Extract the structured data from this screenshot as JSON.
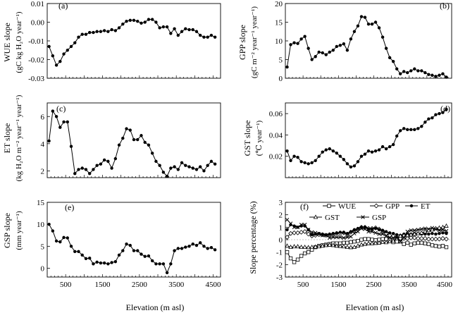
{
  "x_axis_label": "Elevation (m asl)",
  "x_ticks": [
    1500,
    2500,
    3500,
    4500
  ],
  "x_ticks_first_label": "500",
  "x_tick_labels": [
    "500",
    "1500",
    "2500",
    "3500",
    "4500"
  ],
  "panels": [
    {
      "letter": "(a)",
      "ylabel1": "WUE slope",
      "ylabel2": "(gC kg H₂O year⁻¹)"
    },
    {
      "letter": "(b)",
      "ylabel1": "GPP slope",
      "ylabel2": "(gC m⁻² year⁻¹ year⁻¹)"
    },
    {
      "letter": "(c)",
      "ylabel1": "ET slope",
      "ylabel2": "(kg H₂O m⁻² year⁻¹ year⁻¹)"
    },
    {
      "letter": "(d)",
      "ylabel1": "GST slope",
      "ylabel2": "(℃ year⁻¹)"
    },
    {
      "letter": "(e)",
      "ylabel1": "GSP slope",
      "ylabel2": "(mm year⁻¹)"
    },
    {
      "letter": "(f)",
      "ylabel1": "Slope percentage (%)",
      "ylabel2": ""
    }
  ],
  "chart_data": [
    {
      "type": "line",
      "panel": "a",
      "xlim": [
        0,
        4700
      ],
      "ylim": [
        -0.03,
        0.01
      ],
      "yticks": [
        -0.03,
        -0.02,
        -0.01,
        0.0,
        0.01
      ],
      "ytick_labels": [
        "-0.03",
        "-0.02",
        "-0.01",
        "0.00",
        "0.01"
      ],
      "x": [
        50,
        150,
        250,
        350,
        450,
        550,
        650,
        750,
        850,
        950,
        1050,
        1150,
        1250,
        1350,
        1450,
        1550,
        1650,
        1750,
        1850,
        1950,
        2050,
        2150,
        2250,
        2350,
        2450,
        2550,
        2650,
        2750,
        2850,
        2950,
        3050,
        3150,
        3250,
        3350,
        3450,
        3550,
        3650,
        3750,
        3850,
        3950,
        4050,
        4150,
        4250,
        4350,
        4450,
        4550
      ],
      "y": [
        -0.013,
        -0.018,
        -0.023,
        -0.021,
        -0.017,
        -0.015,
        -0.013,
        -0.011,
        -0.008,
        -0.0065,
        -0.0065,
        -0.0055,
        -0.0055,
        -0.005,
        -0.005,
        -0.0045,
        -0.005,
        -0.004,
        -0.0045,
        -0.003,
        -0.001,
        0.0005,
        0.001,
        0.001,
        0.0005,
        -0.0005,
        0.0,
        0.0015,
        0.0015,
        0.0,
        -0.003,
        -0.0025,
        -0.0025,
        -0.006,
        -0.0035,
        -0.007,
        -0.005,
        -0.0035,
        -0.004,
        -0.004,
        -0.005,
        -0.007,
        -0.008,
        -0.008,
        -0.007,
        -0.008
      ]
    },
    {
      "type": "line",
      "panel": "b",
      "xlim": [
        0,
        4700
      ],
      "ylim": [
        0,
        20
      ],
      "yticks": [
        0,
        5,
        10,
        15,
        20
      ],
      "ytick_labels": [
        "0",
        "5",
        "10",
        "15",
        "20"
      ],
      "x": [
        50,
        150,
        250,
        350,
        450,
        550,
        650,
        750,
        850,
        950,
        1050,
        1150,
        1250,
        1350,
        1450,
        1550,
        1650,
        1750,
        1850,
        1950,
        2050,
        2150,
        2250,
        2350,
        2450,
        2550,
        2650,
        2750,
        2850,
        2950,
        3050,
        3150,
        3250,
        3350,
        3450,
        3550,
        3650,
        3750,
        3850,
        3950,
        4050,
        4150,
        4250,
        4350,
        4450,
        4550
      ],
      "y": [
        3.0,
        9.0,
        9.5,
        9.3,
        10.5,
        11.2,
        8.0,
        5.0,
        5.8,
        7.0,
        6.8,
        6.3,
        7.0,
        7.5,
        8.5,
        8.8,
        9.2,
        7.5,
        10.5,
        12.5,
        14.0,
        16.5,
        16.3,
        14.5,
        14.5,
        15.0,
        13.5,
        11.0,
        8.0,
        5.5,
        4.5,
        2.5,
        1.2,
        1.8,
        1.5,
        2.0,
        2.5,
        2.0,
        2.0,
        1.5,
        1.0,
        0.8,
        0.5,
        0.8,
        1.2,
        0.3
      ]
    },
    {
      "type": "line",
      "panel": "c",
      "xlim": [
        0,
        4700
      ],
      "ylim": [
        1.5,
        7
      ],
      "yticks": [
        2,
        4,
        6
      ],
      "ytick_labels": [
        "2",
        "4",
        "6"
      ],
      "x": [
        50,
        150,
        250,
        350,
        450,
        550,
        650,
        750,
        850,
        950,
        1050,
        1150,
        1250,
        1350,
        1450,
        1550,
        1650,
        1750,
        1850,
        1950,
        2050,
        2150,
        2250,
        2350,
        2450,
        2550,
        2650,
        2750,
        2850,
        2950,
        3050,
        3150,
        3250,
        3350,
        3450,
        3550,
        3650,
        3750,
        3850,
        3950,
        4050,
        4150,
        4250,
        4350,
        4450,
        4550
      ],
      "y": [
        4.2,
        6.4,
        6.0,
        5.2,
        5.6,
        5.6,
        3.8,
        1.8,
        2.1,
        2.2,
        2.1,
        1.8,
        2.1,
        2.4,
        2.5,
        2.8,
        2.7,
        2.2,
        2.9,
        3.9,
        4.4,
        5.1,
        5.0,
        4.3,
        4.3,
        4.6,
        4.1,
        3.9,
        3.3,
        2.7,
        2.4,
        1.9,
        1.6,
        2.2,
        2.3,
        2.1,
        2.6,
        2.4,
        2.3,
        2.2,
        2.1,
        2.3,
        2.0,
        2.4,
        2.7,
        2.5
      ]
    },
    {
      "type": "line",
      "panel": "d",
      "xlim": [
        0,
        4700
      ],
      "ylim": [
        0.0,
        0.07
      ],
      "yticks": [
        0.02,
        0.04,
        0.06
      ],
      "ytick_labels": [
        "0.02",
        "0.04",
        "0.06"
      ],
      "x": [
        50,
        150,
        250,
        350,
        450,
        550,
        650,
        750,
        850,
        950,
        1050,
        1150,
        1250,
        1350,
        1450,
        1550,
        1650,
        1750,
        1850,
        1950,
        2050,
        2150,
        2250,
        2350,
        2450,
        2550,
        2650,
        2750,
        2850,
        2950,
        3050,
        3150,
        3250,
        3350,
        3450,
        3550,
        3650,
        3750,
        3850,
        3950,
        4050,
        4150,
        4250,
        4350,
        4450,
        4550
      ],
      "y": [
        0.025,
        0.016,
        0.02,
        0.019,
        0.015,
        0.014,
        0.013,
        0.014,
        0.016,
        0.02,
        0.024,
        0.026,
        0.027,
        0.025,
        0.023,
        0.02,
        0.017,
        0.013,
        0.01,
        0.011,
        0.015,
        0.02,
        0.022,
        0.025,
        0.024,
        0.025,
        0.026,
        0.029,
        0.027,
        0.029,
        0.031,
        0.039,
        0.044,
        0.046,
        0.045,
        0.045,
        0.045,
        0.046,
        0.048,
        0.052,
        0.055,
        0.056,
        0.059,
        0.06,
        0.061,
        0.064
      ]
    },
    {
      "type": "line",
      "panel": "e",
      "xlim": [
        0,
        4700
      ],
      "ylim": [
        -2,
        15
      ],
      "yticks": [
        0,
        5,
        10,
        15
      ],
      "ytick_labels": [
        "0",
        "5",
        "10",
        "15"
      ],
      "x": [
        50,
        150,
        250,
        350,
        450,
        550,
        650,
        750,
        850,
        950,
        1050,
        1150,
        1250,
        1350,
        1450,
        1550,
        1650,
        1750,
        1850,
        1950,
        2050,
        2150,
        2250,
        2350,
        2450,
        2550,
        2650,
        2750,
        2850,
        2950,
        3050,
        3150,
        3250,
        3350,
        3450,
        3550,
        3650,
        3750,
        3850,
        3950,
        4050,
        4150,
        4250,
        4350,
        4450,
        4550
      ],
      "y": [
        10.0,
        8.5,
        6.2,
        6.0,
        7.0,
        6.9,
        5.0,
        3.8,
        3.8,
        3.0,
        2.2,
        2.3,
        1.0,
        1.4,
        1.2,
        1.2,
        1.0,
        1.3,
        1.5,
        3.0,
        4.0,
        5.5,
        5.2,
        4.0,
        4.0,
        3.2,
        2.7,
        2.8,
        1.7,
        1.0,
        1.0,
        1.0,
        -1.0,
        1.0,
        4.0,
        4.5,
        4.5,
        4.8,
        5.0,
        5.5,
        5.2,
        5.8,
        5.0,
        4.5,
        4.7,
        4.2
      ]
    },
    {
      "type": "line",
      "panel": "f",
      "xlim": [
        0,
        4700
      ],
      "ylim": [
        -3,
        3
      ],
      "yticks": [
        -3,
        -2,
        -1,
        0,
        1,
        2,
        3
      ],
      "ytick_labels": [
        "-3",
        "-2",
        "-1",
        "0",
        "1",
        "2",
        "3"
      ],
      "x": [
        50,
        150,
        250,
        350,
        450,
        550,
        650,
        750,
        850,
        950,
        1050,
        1150,
        1250,
        1350,
        1450,
        1550,
        1650,
        1750,
        1850,
        1950,
        2050,
        2150,
        2250,
        2350,
        2450,
        2550,
        2650,
        2750,
        2850,
        2950,
        3050,
        3150,
        3250,
        3350,
        3450,
        3550,
        3650,
        3750,
        3850,
        3950,
        4050,
        4150,
        4250,
        4350,
        4450,
        4550
      ],
      "legend": [
        "WUE",
        "GPP",
        "ET",
        "GST",
        "GSP"
      ],
      "series": [
        {
          "name": "WUE",
          "marker": "square",
          "y": [
            -1.0,
            -1.5,
            -1.8,
            -1.6,
            -1.3,
            -1.1,
            -1.0,
            -0.8,
            -0.6,
            -0.5,
            -0.45,
            -0.4,
            -0.35,
            -0.3,
            -0.3,
            -0.3,
            -0.25,
            -0.25,
            -0.2,
            -0.15,
            -0.1,
            0.0,
            0.05,
            0.05,
            0.0,
            -0.05,
            0.0,
            0.05,
            0.05,
            0.0,
            -0.2,
            -0.15,
            -0.15,
            -0.35,
            -0.25,
            -0.4,
            -0.3,
            -0.25,
            -0.25,
            -0.3,
            -0.35,
            -0.45,
            -0.5,
            -0.55,
            -0.5,
            -0.6
          ]
        },
        {
          "name": "GPP",
          "marker": "diamond",
          "y": [
            0.2,
            0.5,
            0.55,
            0.55,
            0.6,
            0.65,
            0.45,
            0.3,
            0.35,
            0.4,
            0.4,
            0.35,
            0.4,
            0.45,
            0.5,
            0.5,
            0.55,
            0.45,
            0.6,
            0.75,
            0.85,
            1.0,
            1.0,
            0.9,
            0.9,
            0.95,
            0.85,
            0.7,
            0.5,
            0.35,
            0.3,
            0.15,
            0.1,
            0.1,
            0.1,
            0.15,
            0.15,
            0.1,
            0.1,
            0.1,
            0.05,
            0.05,
            0.05,
            0.05,
            0.1,
            0.05
          ]
        },
        {
          "name": "ET",
          "marker": "circle",
          "y": [
            0.8,
            1.2,
            1.1,
            1.0,
            1.1,
            1.1,
            0.8,
            0.4,
            0.45,
            0.5,
            0.45,
            0.4,
            0.45,
            0.5,
            0.55,
            0.6,
            0.6,
            0.5,
            0.65,
            0.8,
            0.9,
            1.0,
            1.0,
            0.85,
            0.85,
            0.9,
            0.8,
            0.75,
            0.65,
            0.55,
            0.5,
            0.4,
            0.35,
            0.45,
            0.45,
            0.45,
            0.5,
            0.5,
            0.45,
            0.45,
            0.45,
            0.5,
            0.45,
            0.5,
            0.55,
            0.5
          ]
        },
        {
          "name": "GST",
          "marker": "triangle",
          "y": [
            -0.5,
            -0.6,
            -0.55,
            -0.55,
            -0.6,
            -0.6,
            -0.62,
            -0.6,
            -0.58,
            -0.55,
            -0.5,
            -0.45,
            -0.42,
            -0.45,
            -0.5,
            -0.52,
            -0.55,
            -0.6,
            -0.62,
            -0.6,
            -0.5,
            -0.4,
            -0.35,
            -0.3,
            -0.3,
            -0.28,
            -0.25,
            -0.2,
            -0.22,
            -0.15,
            -0.1,
            0.1,
            0.3,
            0.35,
            0.35,
            0.4,
            0.45,
            0.5,
            0.55,
            0.65,
            0.75,
            0.8,
            0.9,
            0.95,
            1.0,
            1.1
          ]
        },
        {
          "name": "GSP",
          "marker": "cross",
          "y": [
            1.6,
            1.3,
            1.0,
            1.0,
            1.2,
            1.2,
            0.8,
            0.6,
            0.55,
            0.45,
            0.35,
            0.35,
            0.15,
            0.2,
            0.2,
            0.2,
            0.15,
            0.2,
            0.25,
            0.5,
            0.65,
            0.9,
            0.85,
            0.65,
            0.65,
            0.55,
            0.45,
            0.45,
            0.3,
            0.15,
            0.15,
            0.15,
            -0.15,
            0.15,
            0.65,
            0.75,
            0.75,
            0.8,
            0.85,
            0.9,
            0.85,
            0.95,
            0.85,
            0.75,
            0.8,
            0.7
          ]
        }
      ]
    }
  ]
}
